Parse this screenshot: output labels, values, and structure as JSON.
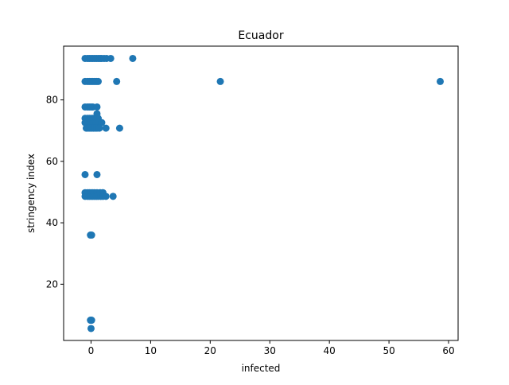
{
  "chart_data": {
    "type": "scatter",
    "title": "Ecuador",
    "xlabel": "infected",
    "ylabel": "stringency index",
    "xlim": [
      -4.6,
      61.6
    ],
    "ylim": [
      1.7,
      97.5
    ],
    "xticks": [
      0,
      10,
      20,
      30,
      40,
      50,
      60
    ],
    "yticks": [
      20,
      40,
      60,
      80
    ],
    "grid": false,
    "legend": "none",
    "marker_color": "#1f77b4",
    "points": [
      [
        -1.0,
        93.5
      ],
      [
        -0.6,
        93.5
      ],
      [
        -0.3,
        93.5
      ],
      [
        0.0,
        93.5
      ],
      [
        0.3,
        93.5
      ],
      [
        0.6,
        93.5
      ],
      [
        0.9,
        93.5
      ],
      [
        1.2,
        93.5
      ],
      [
        1.5,
        93.5
      ],
      [
        1.8,
        93.5
      ],
      [
        2.2,
        93.5
      ],
      [
        2.6,
        93.5
      ],
      [
        3.3,
        93.5
      ],
      [
        7.0,
        93.5
      ],
      [
        -1.0,
        86.0
      ],
      [
        -0.6,
        86.0
      ],
      [
        -0.3,
        86.0
      ],
      [
        0.0,
        86.0
      ],
      [
        0.3,
        86.0
      ],
      [
        0.6,
        86.0
      ],
      [
        0.9,
        86.0
      ],
      [
        1.2,
        86.0
      ],
      [
        4.3,
        86.0
      ],
      [
        21.7,
        86.0
      ],
      [
        58.6,
        86.0
      ],
      [
        -1.0,
        77.7
      ],
      [
        -0.6,
        77.7
      ],
      [
        -0.3,
        77.7
      ],
      [
        0.0,
        77.7
      ],
      [
        0.3,
        77.7
      ],
      [
        1.0,
        77.7
      ],
      [
        -1.0,
        74.0
      ],
      [
        -0.6,
        74.0
      ],
      [
        -0.3,
        74.0
      ],
      [
        0.0,
        74.0
      ],
      [
        0.3,
        74.0
      ],
      [
        0.6,
        74.0
      ],
      [
        1.0,
        75.5
      ],
      [
        1.2,
        74.0
      ],
      [
        -1.0,
        72.6
      ],
      [
        -0.6,
        72.6
      ],
      [
        -0.3,
        72.6
      ],
      [
        0.0,
        72.6
      ],
      [
        0.3,
        72.6
      ],
      [
        0.6,
        72.6
      ],
      [
        0.9,
        72.6
      ],
      [
        1.3,
        72.6
      ],
      [
        1.8,
        72.6
      ],
      [
        -0.8,
        70.8
      ],
      [
        -0.5,
        70.8
      ],
      [
        -0.2,
        70.8
      ],
      [
        0.1,
        70.8
      ],
      [
        0.4,
        70.8
      ],
      [
        0.7,
        70.8
      ],
      [
        1.0,
        70.8
      ],
      [
        1.4,
        70.8
      ],
      [
        2.5,
        70.8
      ],
      [
        4.8,
        70.8
      ],
      [
        -1.0,
        55.7
      ],
      [
        1.0,
        55.7
      ],
      [
        -1.0,
        49.8
      ],
      [
        -0.6,
        49.8
      ],
      [
        -0.3,
        49.8
      ],
      [
        0.0,
        49.8
      ],
      [
        0.3,
        49.8
      ],
      [
        0.6,
        49.8
      ],
      [
        1.0,
        49.8
      ],
      [
        1.5,
        49.8
      ],
      [
        2.0,
        49.8
      ],
      [
        -1.0,
        48.6
      ],
      [
        -0.6,
        48.6
      ],
      [
        -0.3,
        48.6
      ],
      [
        0.0,
        48.6
      ],
      [
        0.3,
        48.6
      ],
      [
        0.6,
        48.6
      ],
      [
        0.9,
        48.6
      ],
      [
        1.2,
        48.6
      ],
      [
        1.6,
        48.6
      ],
      [
        2.0,
        48.6
      ],
      [
        2.5,
        48.6
      ],
      [
        3.7,
        48.6
      ],
      [
        -0.1,
        36.0
      ],
      [
        0.1,
        36.0
      ],
      [
        0.0,
        8.3
      ],
      [
        0.1,
        8.3
      ],
      [
        -0.1,
        8.3
      ],
      [
        0.0,
        5.6
      ]
    ]
  }
}
